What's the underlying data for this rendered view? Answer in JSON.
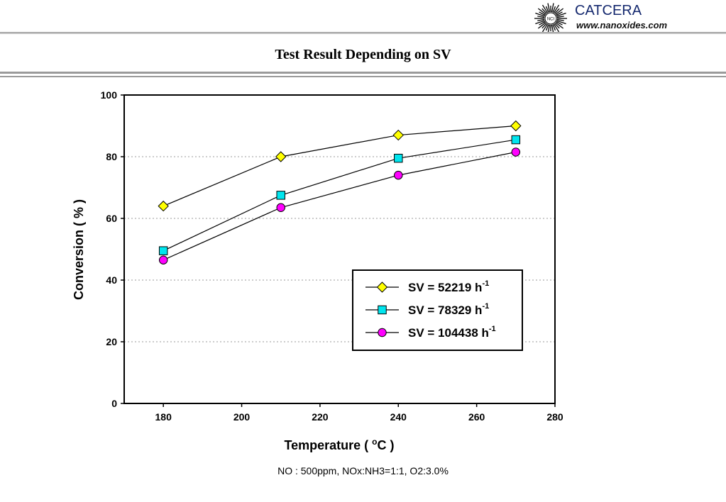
{
  "header": {
    "brand_name": "CATCERA",
    "brand_url": "www.nanoxides.com",
    "logo_icon": "sunburst-logo-icon",
    "logo_text": "NCI"
  },
  "page_title": "Test Result Depending on SV",
  "footnote": "NO : 500ppm, NOx:NH3=1:1, O2:3.0%",
  "chart_data": {
    "type": "line",
    "title": "",
    "xlabel": "Temperature ( °C )",
    "ylabel": "Conversion ( % )",
    "xlim": [
      170,
      280
    ],
    "ylim": [
      0,
      100
    ],
    "xticks": [
      180,
      200,
      220,
      240,
      260,
      280
    ],
    "yticks": [
      0,
      20,
      40,
      60,
      80,
      100
    ],
    "grid": "horizontal dotted",
    "legend_position": "lower-right",
    "x": [
      180,
      210,
      240,
      270
    ],
    "series": [
      {
        "name": "SV = 52219 h-1",
        "values": [
          64,
          80,
          87,
          90
        ],
        "marker": "diamond",
        "color": "#ffff00"
      },
      {
        "name": "SV = 78329 h-1",
        "values": [
          49.5,
          67.5,
          79.5,
          85.5
        ],
        "marker": "square",
        "color": "#00e5ee"
      },
      {
        "name": "SV = 104438 h-1",
        "values": [
          46.5,
          63.5,
          74,
          81.5
        ],
        "marker": "circle",
        "color": "#ff00ff"
      }
    ]
  }
}
